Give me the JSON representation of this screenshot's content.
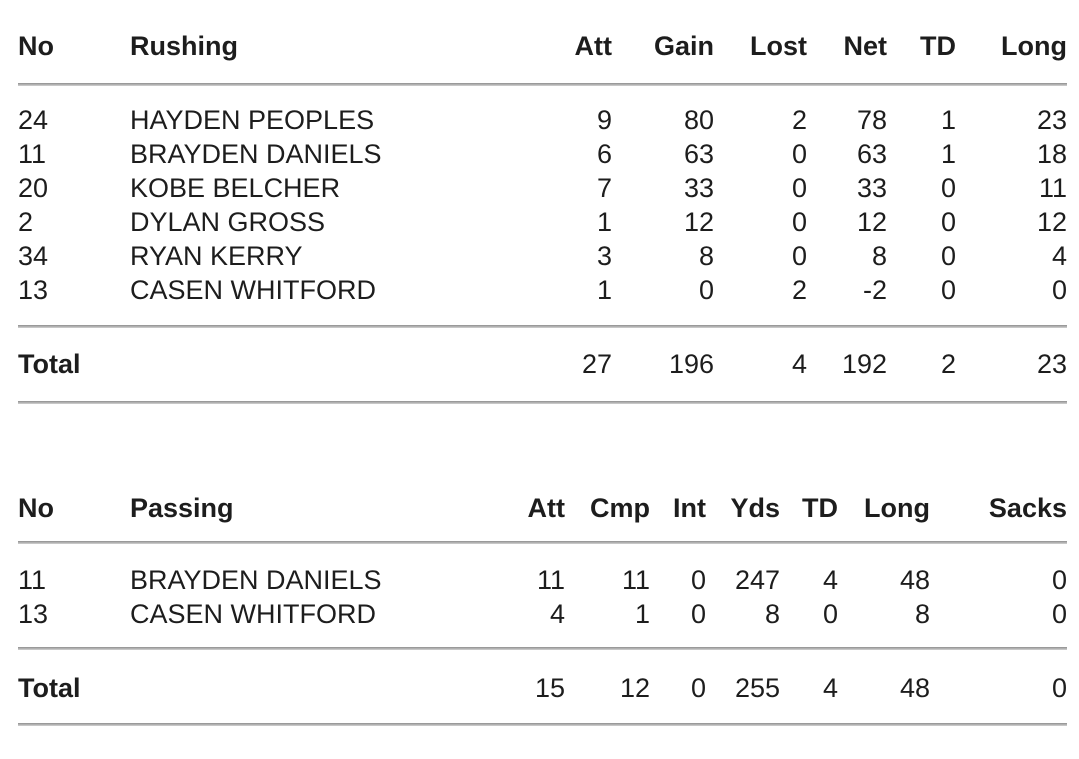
{
  "page": {
    "background_color": "#ffffff",
    "text_color": "#1d1d1d",
    "divider_color": "#9e9e9e"
  },
  "tables": [
    {
      "name": "rushing",
      "headers": {
        "no": "No",
        "name": "Rushing",
        "stats": [
          "Att",
          "Gain",
          "Lost",
          "Net",
          "TD",
          "Long"
        ]
      },
      "rows": [
        {
          "no": "24",
          "player": "HAYDEN PEOPLES",
          "stats": [
            "9",
            "80",
            "2",
            "78",
            "1",
            "23"
          ]
        },
        {
          "no": "11",
          "player": "BRAYDEN DANIELS",
          "stats": [
            "6",
            "63",
            "0",
            "63",
            "1",
            "18"
          ]
        },
        {
          "no": "20",
          "player": "KOBE BELCHER",
          "stats": [
            "7",
            "33",
            "0",
            "33",
            "0",
            "11"
          ]
        },
        {
          "no": "2",
          "player": "DYLAN GROSS",
          "stats": [
            "1",
            "12",
            "0",
            "12",
            "0",
            "12"
          ]
        },
        {
          "no": "34",
          "player": "RYAN KERRY",
          "stats": [
            "3",
            "8",
            "0",
            "8",
            "0",
            "4"
          ]
        },
        {
          "no": "13",
          "player": "CASEN WHITFORD",
          "stats": [
            "1",
            "0",
            "2",
            "-2",
            "0",
            "0"
          ]
        }
      ],
      "total": {
        "label": "Total",
        "stats": [
          "27",
          "196",
          "4",
          "192",
          "2",
          "23"
        ]
      }
    },
    {
      "name": "passing",
      "headers": {
        "no": "No",
        "name": "Passing",
        "stats": [
          "Att",
          "Cmp",
          "Int",
          "Yds",
          "TD",
          "Long",
          "Sacks"
        ]
      },
      "rows": [
        {
          "no": "11",
          "player": "BRAYDEN DANIELS",
          "stats": [
            "11",
            "11",
            "0",
            "247",
            "4",
            "48",
            "0"
          ]
        },
        {
          "no": "13",
          "player": "CASEN WHITFORD",
          "stats": [
            "4",
            "1",
            "0",
            "8",
            "0",
            "8",
            "0"
          ]
        }
      ],
      "total": {
        "label": "Total",
        "stats": [
          "15",
          "12",
          "0",
          "255",
          "4",
          "48",
          "0"
        ]
      }
    }
  ]
}
